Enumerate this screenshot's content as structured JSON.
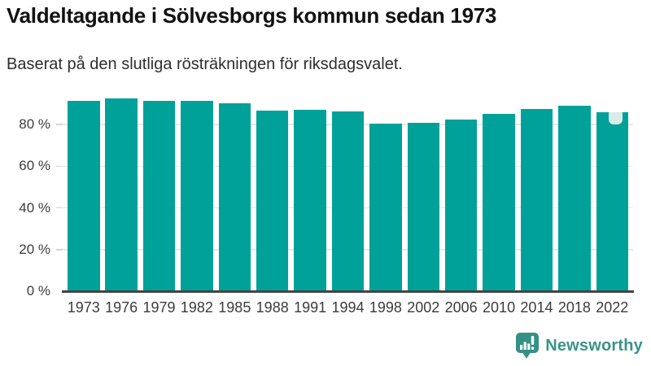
{
  "header": {
    "title": "Valdeltagande i Sölvesborgs kommun sedan 1973",
    "subtitle": "Baserat på den slutliga rösträkningen för riksdagsvalet."
  },
  "chart_data": {
    "type": "bar",
    "title": "Valdeltagande i Sölvesborgs kommun sedan 1973",
    "subtitle": "Baserat på den slutliga rösträkningen för riksdagsvalet.",
    "categories": [
      "1973",
      "1976",
      "1979",
      "1982",
      "1985",
      "1988",
      "1991",
      "1994",
      "1998",
      "2002",
      "2006",
      "2010",
      "2014",
      "2018",
      "2022"
    ],
    "values": [
      91.5,
      92.6,
      91.6,
      91.6,
      90.1,
      86.8,
      87.3,
      86.5,
      80.3,
      80.7,
      82.6,
      85.2,
      87.5,
      89.1,
      85.8
    ],
    "unit": "%",
    "xlabel": "",
    "ylabel": "",
    "ylim": [
      0,
      100
    ],
    "yticks": [
      0,
      20,
      40,
      60,
      80
    ],
    "ytick_labels": [
      "0 %",
      "20 %",
      "40 %",
      "60 %",
      "80 %"
    ],
    "grid": true,
    "legend": "none",
    "bar_color": "#00a199",
    "highlight": {
      "category": "2022",
      "marker_color": "#d8ece9"
    }
  },
  "footer": {
    "brand": "Newsworthy",
    "brand_color": "#38948b",
    "logo_icon": "newsworthy-bubble-barchart-icon"
  }
}
